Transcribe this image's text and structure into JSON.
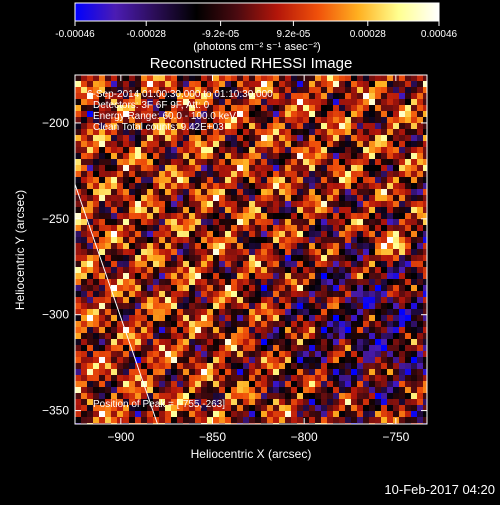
{
  "colorbar": {
    "ticks": [
      "-0.00046",
      "-0.00028",
      "-9.2e-05",
      "9.2e-05",
      "0.00028",
      "0.00046"
    ],
    "tick_values": [
      -0.00046,
      -0.00028,
      -9.2e-05,
      9.2e-05,
      0.00028,
      0.00046
    ],
    "unit_label": "(photons cm⁻² s⁻¹ asec⁻²)",
    "stops": [
      "#0000ff",
      "#4b1cb3",
      "#2a0d55",
      "#000000",
      "#4a0a10",
      "#b3160a",
      "#f0500a",
      "#ffb020",
      "#ffff90",
      "#ffffff"
    ]
  },
  "header": {
    "title": "Reconstructed RHESSI Image"
  },
  "annotations": {
    "time_range": "6-Sep-2014 01:00:30.000 to 01:10:30.000",
    "detectors": "Detectors: 3F 6F 9F, Att: 0",
    "energy": "Energy Range: 60.0 - 100.0 keV",
    "method": "Clean     Total counts: 9.42E+03",
    "peak": "Position of Peak = [-755,-263]"
  },
  "footer": {
    "timestamp": "10-Feb-2017 04:20"
  },
  "chart_data": {
    "type": "heatmap",
    "title": "Reconstructed RHESSI Image",
    "xlabel": "Heliocentric X (arcsec)",
    "ylabel": "Heliocentric Y (arcsec)",
    "xlim": [
      -925,
      -733
    ],
    "ylim": [
      -357,
      -175
    ],
    "xticks": [
      -900,
      -850,
      -800,
      -750
    ],
    "yticks": [
      -200,
      -250,
      -300,
      -350
    ],
    "xtick_labels": [
      "−900",
      "−850",
      "−800",
      "−750"
    ],
    "ytick_labels": [
      "−200",
      "−250",
      "−300",
      "−350"
    ],
    "peak": {
      "x": -755,
      "y": -263
    },
    "limb_line": [
      [
        -925,
        -232
      ],
      [
        -880,
        -357
      ]
    ],
    "value_range": [
      -0.00046,
      0.00046
    ],
    "grid": false
  }
}
